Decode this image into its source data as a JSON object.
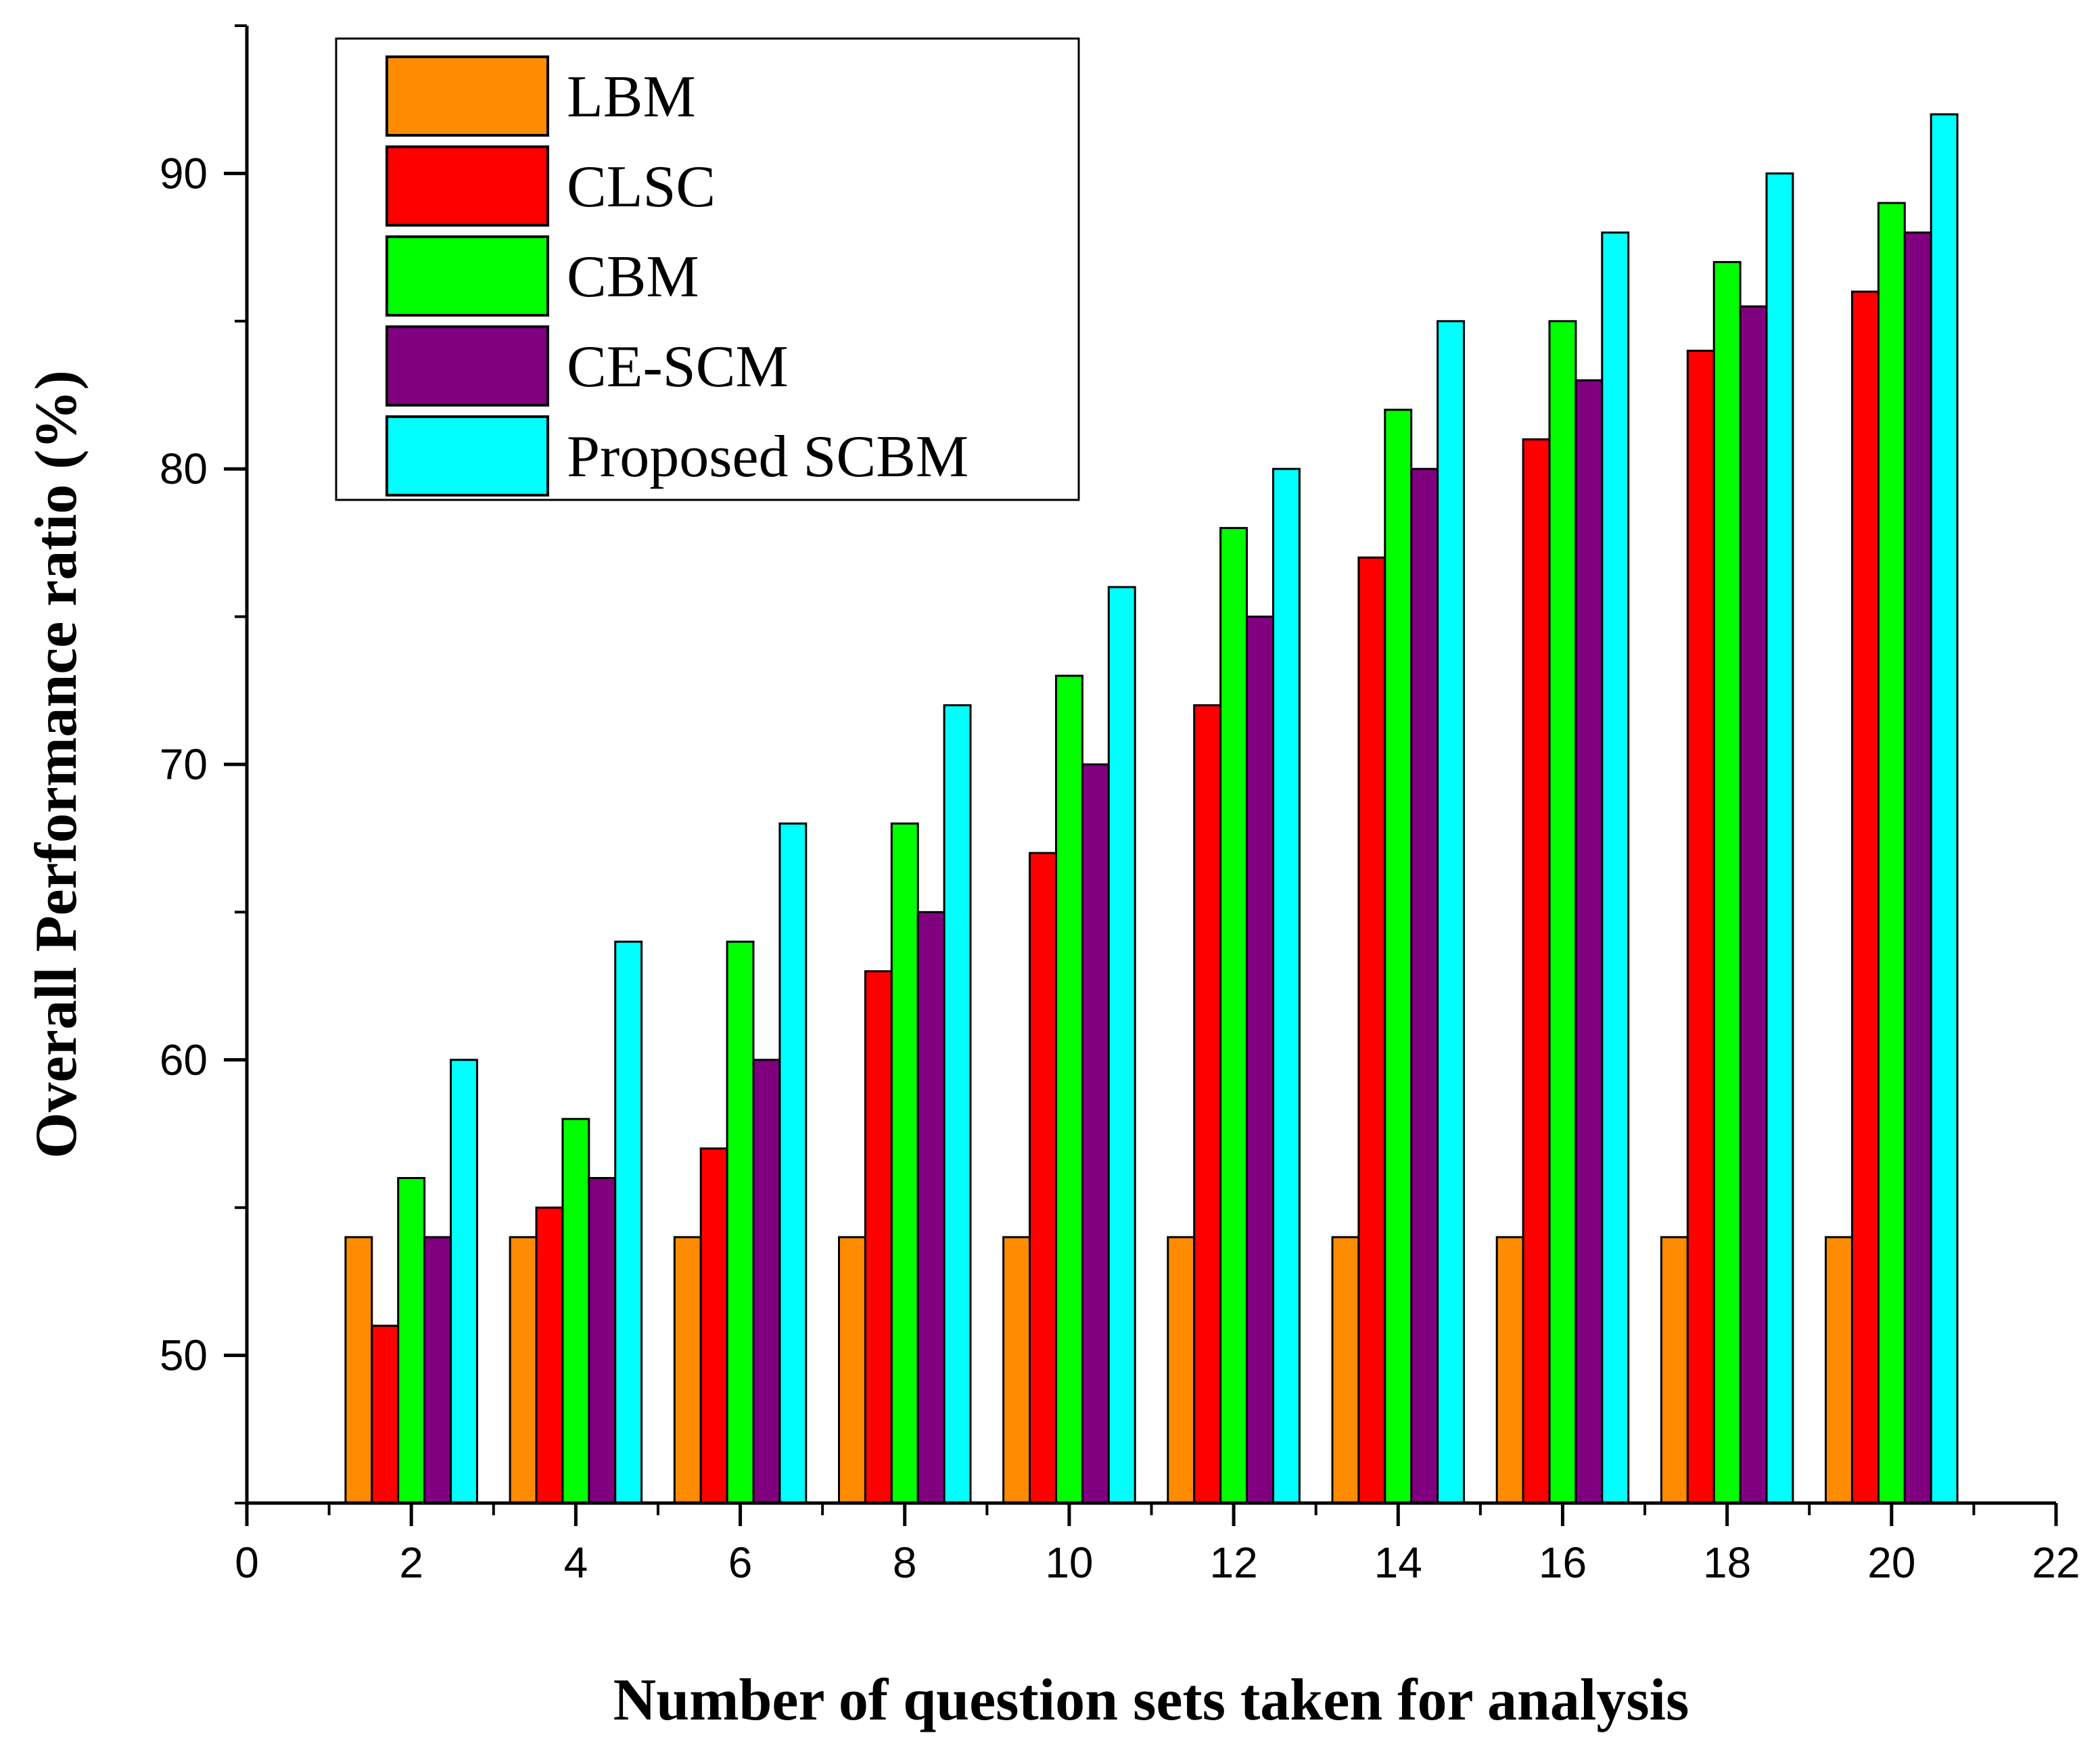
{
  "chart_data": {
    "type": "bar",
    "title": "",
    "xlabel": "Number of question sets taken for analysis",
    "ylabel": "Overall Performance ratio (%)",
    "x": [
      2,
      4,
      6,
      8,
      10,
      12,
      14,
      16,
      18,
      20
    ],
    "xlim": [
      0,
      22
    ],
    "xticks": [
      0,
      2,
      4,
      6,
      8,
      10,
      12,
      14,
      16,
      18,
      20,
      22
    ],
    "ylim": [
      45,
      95
    ],
    "yticks": [
      50,
      60,
      70,
      80,
      90
    ],
    "grid": false,
    "legend_position": "top-left",
    "series": [
      {
        "name": "LBM",
        "color": "#ff8c00",
        "values": [
          54,
          54,
          54,
          54,
          54,
          54,
          54,
          54,
          54,
          54
        ]
      },
      {
        "name": "CLSC",
        "color": "#ff0000",
        "values": [
          51,
          55,
          57,
          63,
          67,
          72,
          77,
          81,
          84,
          86
        ]
      },
      {
        "name": "CBM",
        "color": "#00ff00",
        "values": [
          56,
          58,
          64,
          68,
          73,
          78,
          82,
          85,
          87,
          89
        ]
      },
      {
        "name": "CE-SCM",
        "color": "#800080",
        "values": [
          54,
          56,
          60,
          65,
          70,
          75,
          80,
          83,
          85.5,
          88
        ]
      },
      {
        "name": "Proposed SCBM",
        "color": "#00ffff",
        "values": [
          60,
          64,
          68,
          72,
          76,
          80,
          85,
          88,
          90,
          92
        ]
      }
    ]
  }
}
